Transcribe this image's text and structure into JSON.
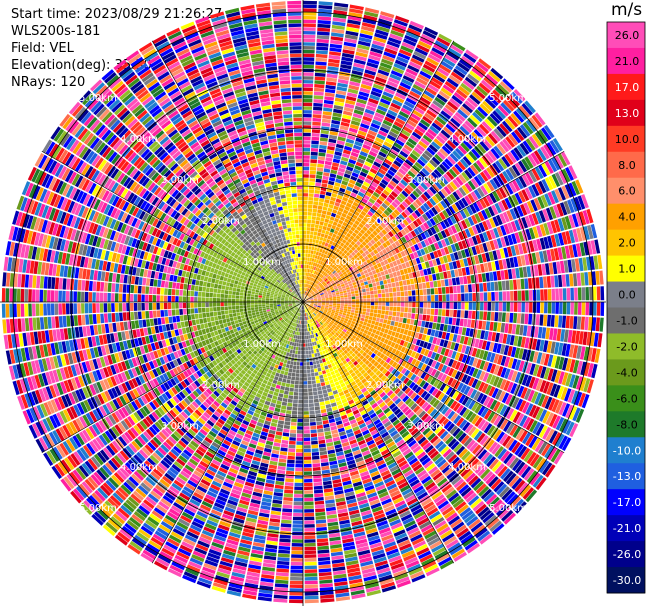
{
  "info": {
    "start_time": "Start time: 2023/08/29 21:26:27",
    "instrument": "WLS200s-181",
    "field": "Field: VEL",
    "elevation": "Elevation(deg): 35.30",
    "nrays": "NRays: 120"
  },
  "chart_data": {
    "type": "heatmap",
    "title": "",
    "projection": "polar PPI",
    "field": "VEL",
    "units": "m/s",
    "nrays": 120,
    "range_rings_km": [
      1.0,
      2.0,
      3.0,
      4.0,
      5.0
    ],
    "range_ring_labels": [
      "1.00km",
      "2.00km",
      "3.00km",
      "4.00km",
      "5.00km"
    ],
    "max_range_km": 5.2,
    "colorbar": {
      "label": "m/s",
      "ticks": [
        "26.0",
        "21.0",
        "17.0",
        "13.0",
        "10.0",
        "8.0",
        "6.0",
        "4.0",
        "2.0",
        "1.0",
        "0.0",
        "-1.0",
        "-2.0",
        "-4.0",
        "-6.0",
        "-8.0",
        "-10.0",
        "-13.0",
        "-17.0",
        "-21.0",
        "-26.0",
        "-30.0"
      ],
      "colors": [
        "#ff4db8",
        "#ff1fa0",
        "#ff1a1a",
        "#e0001a",
        "#ff3b24",
        "#ff6a4a",
        "#ff8f6b",
        "#ffa000",
        "#ffc400",
        "#ffff00",
        "#7b7f8a",
        "#6e6e6e",
        "#8fbc2a",
        "#6b9a1c",
        "#3a8f1a",
        "#1e7a2a",
        "#1f7fcf",
        "#1f5fe0",
        "#0000ff",
        "#0000b8",
        "#00008b",
        "#001060"
      ]
    },
    "velocity_pattern": {
      "near_range_km": 2.1,
      "positive_sector": "north to south-east (yellow / orange)",
      "negative_sector": "south to west (green)",
      "zero_sector": "north-west (gray)",
      "far_range": "noisy, all colors"
    }
  }
}
